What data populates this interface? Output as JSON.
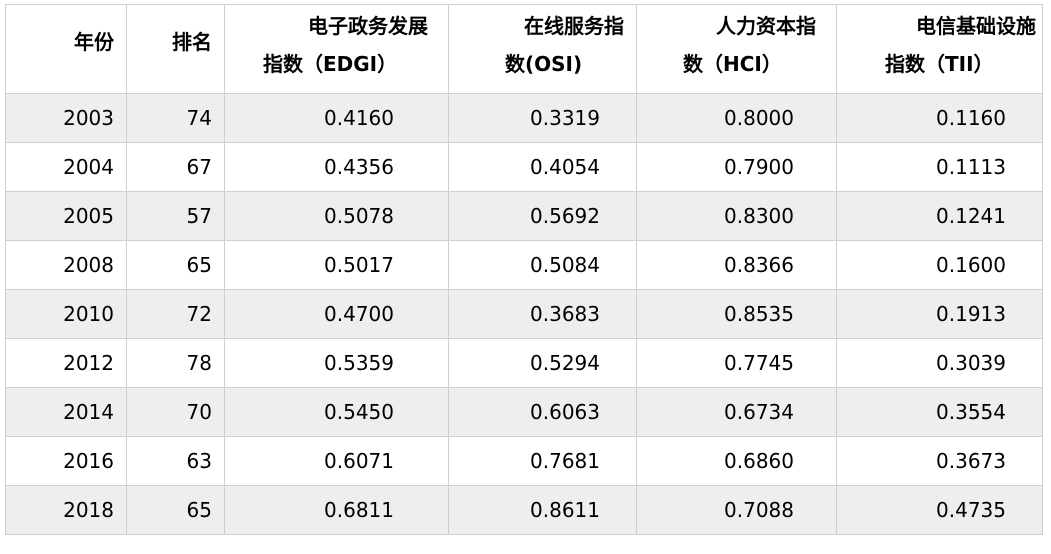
{
  "table": {
    "headers": [
      {
        "line1": "年份",
        "line2": ""
      },
      {
        "line1": "排名",
        "line2": ""
      },
      {
        "line1": "电子政务发展",
        "line2": "指数（EDGI）"
      },
      {
        "line1": "在线服务指",
        "line2": "数(OSI)"
      },
      {
        "line1": "人力资本指",
        "line2": "数（HCI）"
      },
      {
        "line1": "电信基础设施",
        "line2": "指数（TII）"
      }
    ],
    "rows": [
      [
        "2003",
        "74",
        "0.4160",
        "0.3319",
        "0.8000",
        "0.1160"
      ],
      [
        "2004",
        "67",
        "0.4356",
        "0.4054",
        "0.7900",
        "0.1113"
      ],
      [
        "2005",
        "57",
        "0.5078",
        "0.5692",
        "0.8300",
        "0.1241"
      ],
      [
        "2008",
        "65",
        "0.5017",
        "0.5084",
        "0.8366",
        "0.1600"
      ],
      [
        "2010",
        "72",
        "0.4700",
        "0.3683",
        "0.8535",
        "0.1913"
      ],
      [
        "2012",
        "78",
        "0.5359",
        "0.5294",
        "0.7745",
        "0.3039"
      ],
      [
        "2014",
        "70",
        "0.5450",
        "0.6063",
        "0.6734",
        "0.3554"
      ],
      [
        "2016",
        "63",
        "0.6071",
        "0.7681",
        "0.6860",
        "0.3673"
      ],
      [
        "2018",
        "65",
        "0.6811",
        "0.8611",
        "0.7088",
        "0.4735"
      ]
    ]
  }
}
